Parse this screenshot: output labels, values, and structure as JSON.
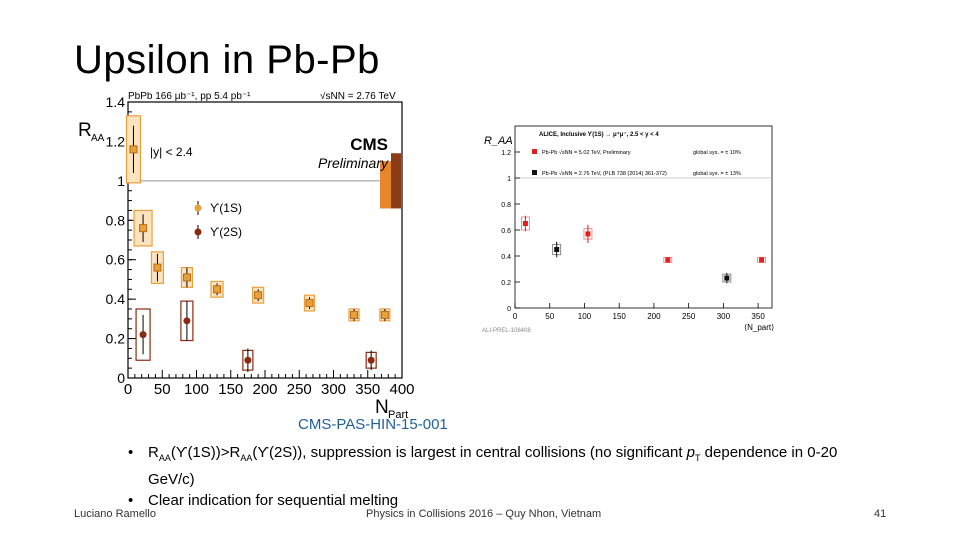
{
  "slide": {
    "title": "Upsilon in Pb-Pb",
    "reference": "CMS-PAS-HIN-15-001",
    "bullets": [
      {
        "pre1": "R",
        "sub1": "AA",
        "mid1": "(ϒ(1S))>R",
        "sub2": "AA",
        "mid2": "(ϒ(2S)), suppression is largest in central collisions (no significant ",
        "pt": "p",
        "ptsub": "T",
        "post": " dependence in 0-20 GeV/c)"
      },
      {
        "text": "Clear indication for sequential melting"
      }
    ],
    "footer": {
      "author": "Luciano Ramello",
      "conference": "Physics in Collisions 2016 – Quy Nhon, Vietnam",
      "page": "41"
    }
  },
  "chart_data": [
    {
      "type": "scatter",
      "title": "PbPb 166 μb⁻¹, pp 5.4 pb⁻¹",
      "energy_label": "√sNN = 2.76 TeV",
      "experiment": "CMS",
      "status": "Preliminary",
      "cut_label": "|y| < 2.4",
      "xlabel": "N_Part",
      "ylabel": "R_AA",
      "xlim": [
        0,
        400
      ],
      "ylim": [
        0,
        1.4
      ],
      "x_ticks": [
        "0",
        "50",
        "100",
        "150",
        "200",
        "250",
        "300",
        "350",
        "400"
      ],
      "y_ticks": [
        "0",
        "0.2",
        "0.4",
        "0.6",
        "0.8",
        "1",
        "1.2",
        "1.4"
      ],
      "series": [
        {
          "name": "ϒ(1S)",
          "color": "#e8a03c",
          "x": [
            8,
            22,
            43,
            86,
            130,
            190,
            265,
            330,
            375
          ],
          "y": [
            1.16,
            0.76,
            0.56,
            0.51,
            0.45,
            0.42,
            0.38,
            0.32,
            0.32
          ]
        },
        {
          "name": "ϒ(2S)",
          "color": "#8b2a12",
          "x": [
            22,
            86,
            175,
            355
          ],
          "y": [
            0.22,
            0.29,
            0.09,
            0.09
          ]
        }
      ]
    },
    {
      "type": "scatter",
      "title": "ALICE, Inclusive ϒ(1S) → μ⁺μ⁻, 2.5 < y < 4",
      "xlabel": "⟨N_part⟩",
      "ylabel": "R_AA",
      "xlim": [
        0,
        370
      ],
      "ylim": [
        0,
        1.4
      ],
      "x_ticks": [
        "0",
        "50",
        "100",
        "150",
        "200",
        "250",
        "300",
        "350"
      ],
      "y_ticks": [
        "0",
        "0.2",
        "0.4",
        "0.6",
        "0.8",
        "1",
        "1.2"
      ],
      "watermark": "ALI-PREL-108408",
      "series": [
        {
          "name": "Pb-Pb √sNN = 5.02 TeV, Preliminary",
          "syst_label": "global sys. = ± 10%",
          "color": "#e02020",
          "x": [
            15,
            105,
            220,
            355
          ],
          "y": [
            0.65,
            0.57,
            0.37,
            0.37
          ]
        },
        {
          "name": "Pb-Pb √sNN = 2.76 TeV, (PLB 738 (2014) 361-372)",
          "syst_label": "global sys. = ± 13%",
          "color": "#111111",
          "x": [
            60,
            305
          ],
          "y": [
            0.45,
            0.23
          ]
        }
      ]
    }
  ]
}
